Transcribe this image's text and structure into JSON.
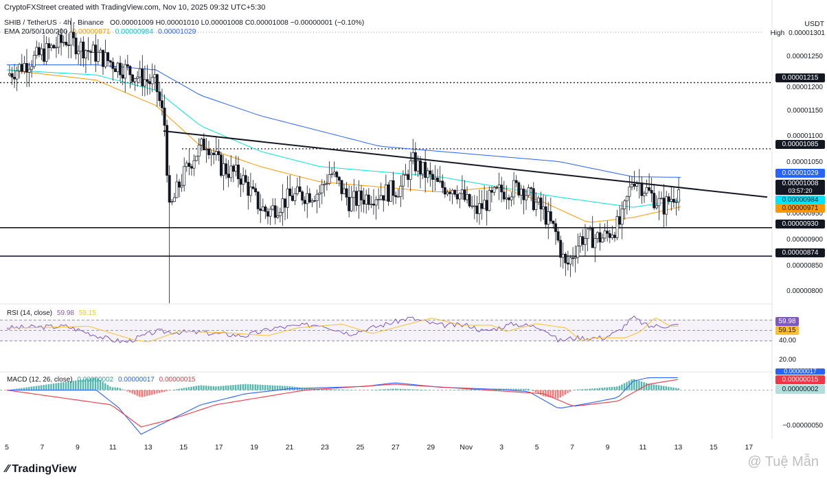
{
  "header": {
    "created": "CryptoFXStreet created with TradingView.com, Nov 10, 2025 09:32 UTC+5:30",
    "symbol": "SHIB / TetherUS · 4h · Binance",
    "ohlc": "O0.00001009 H0.00001010 L0.00001008 C0.00001008 −0.00000001 (−0.10%)",
    "ema_title": "EMA 20/50/100/200",
    "ema_values": [
      "0.00000971",
      "0.00000984",
      "0.00001029"
    ],
    "currency": "USDT"
  },
  "colors": {
    "up": "#089981",
    "down": "#f23645",
    "ema50": "#ff9800",
    "ema100": "#00e5d8",
    "ema200": "#2962ff",
    "rsi": "#7e57c2",
    "rsi_ma": "#fbc02d",
    "macd": "#2962ff",
    "signal": "#f23645"
  },
  "price_levels": [
    {
      "value": "0.00001215",
      "style": "dotted"
    },
    {
      "value": "0.00001085",
      "style": "dotted"
    },
    {
      "value": "0.00000930",
      "style": "solid"
    },
    {
      "value": "0.00000874",
      "style": "solid"
    }
  ],
  "price_labels": [
    {
      "text": "High",
      "value": "0.00001301",
      "bg": "#ffffff",
      "fg": "#131722"
    },
    {
      "text": "",
      "value": "0.00001215",
      "bg": "#131722",
      "fg": "#ffffff"
    },
    {
      "text": "",
      "value": "0.00001085",
      "bg": "#131722",
      "fg": "#ffffff"
    },
    {
      "text": "",
      "value": "0.00001029",
      "bg": "#2962ff",
      "fg": "#ffffff"
    },
    {
      "text": "",
      "value": "0.00001008",
      "bg": "#131722",
      "fg": "#ffffff",
      "sub": "03:57:20"
    },
    {
      "text": "",
      "value": "0.00000984",
      "bg": "#00e5ff",
      "fg": "#131722"
    },
    {
      "text": "",
      "value": "0.00000971",
      "bg": "#ff9800",
      "fg": "#131722"
    },
    {
      "text": "",
      "value": "0.00000930",
      "bg": "#131722",
      "fg": "#ffffff"
    },
    {
      "text": "",
      "value": "0.00000874",
      "bg": "#131722",
      "fg": "#ffffff"
    }
  ],
  "price_scale": [
    "0.00001250",
    "0.00001200",
    "0.00001150",
    "0.00001100",
    "0.00001050",
    "0.00000950",
    "0.00000900",
    "0.00000850",
    "0.00000800"
  ],
  "rsi": {
    "title": "RSI (14, close)",
    "value": "59.98",
    "ma": "59.15",
    "scale": [
      "40.00",
      "20.00"
    ]
  },
  "macd": {
    "title": "MACD (12, 26, close)",
    "values": [
      "0.00000002",
      "0.00000017",
      "0.00000015"
    ],
    "labels": [
      "0.00000017",
      "0.00000015",
      "0.00000002"
    ],
    "scale": [
      "−0.00000050"
    ]
  },
  "x_axis": [
    "5",
    "7",
    "9",
    "11",
    "13",
    "15",
    "17",
    "19",
    "21",
    "23",
    "25",
    "27",
    "29",
    "Nov",
    "3",
    "5",
    "7",
    "9",
    "11",
    "13",
    "15",
    "17"
  ],
  "footer": {
    "logo": "TradingView",
    "watermark": "@ Tuệ Mẫn"
  },
  "chart_data": {
    "type": "candlestick",
    "title": "SHIB / TetherUS · 4h · Binance",
    "x_labels": [
      "5",
      "7",
      "9",
      "11",
      "13",
      "15",
      "17",
      "19",
      "21",
      "23",
      "25",
      "27",
      "29",
      "Nov",
      "3",
      "5",
      "7",
      "9",
      "11",
      "13",
      "15",
      "17"
    ],
    "ylim": [
      7.8e-06,
      1.31e-05
    ],
    "series": [
      {
        "name": "SHIB/USDT",
        "path": [
          [
            0,
            1.23e-05
          ],
          [
            4,
            1.3e-05
          ],
          [
            8,
            1.24e-05
          ],
          [
            10,
            1.21e-05
          ],
          [
            10.6,
            1.13e-05
          ],
          [
            10.9,
            9.6e-06
          ],
          [
            11.5,
            1.01e-05
          ],
          [
            12.5,
            1.07e-05
          ],
          [
            13.4,
            1.1e-05
          ],
          [
            14.3,
            1.05e-05
          ],
          [
            15.7,
            1.03e-05
          ],
          [
            17,
            9.7e-06
          ],
          [
            17.5,
            9.6e-06
          ],
          [
            19,
            9.9e-06
          ],
          [
            21,
            1e-05
          ],
          [
            21.7,
            1.04e-05
          ],
          [
            23,
            9.8e-06
          ],
          [
            24,
            9.9e-06
          ],
          [
            25.5,
            1e-05
          ],
          [
            26.5,
            1.01e-05
          ],
          [
            27.2,
            1.06e-05
          ],
          [
            29,
            1.01e-05
          ],
          [
            30,
            1.01e-05
          ],
          [
            31.4,
            9.6e-06
          ],
          [
            33,
            1e-05
          ],
          [
            34.5,
            1.01e-05
          ],
          [
            36,
            9.6e-06
          ],
          [
            36.8,
            9.2e-06
          ],
          [
            37.5,
            8.5e-06
          ],
          [
            38.5,
            9.1e-06
          ],
          [
            40,
            9.1e-06
          ],
          [
            41.2,
            9.4e-06
          ],
          [
            42,
            1.03e-05
          ],
          [
            43,
            1e-05
          ],
          [
            44,
            9.7e-06
          ],
          [
            45.2,
            1.01e-05
          ]
        ]
      },
      {
        "name": "EMA 50",
        "path": [
          [
            0,
            1.24e-05
          ],
          [
            6,
            1.22e-05
          ],
          [
            10,
            1.17e-05
          ],
          [
            13,
            1.09e-05
          ],
          [
            17,
            1.05e-05
          ],
          [
            21,
            1.02e-05
          ],
          [
            25,
            1.01e-05
          ],
          [
            29,
            1e-05
          ],
          [
            33,
            1.01e-05
          ],
          [
            36,
            9.8e-06
          ],
          [
            39,
            9.4e-06
          ],
          [
            42,
            9.5e-06
          ],
          [
            45.2,
            9.71e-06
          ]
        ]
      },
      {
        "name": "EMA 100",
        "path": [
          [
            0,
            1.24e-05
          ],
          [
            6,
            1.23e-05
          ],
          [
            10,
            1.2e-05
          ],
          [
            13,
            1.13e-05
          ],
          [
            17,
            1.08e-05
          ],
          [
            21,
            1.05e-05
          ],
          [
            25,
            1.04e-05
          ],
          [
            29,
            1.03e-05
          ],
          [
            33,
            1.01e-05
          ],
          [
            37,
            9.9e-06
          ],
          [
            42,
            9.7e-06
          ],
          [
            45.2,
            9.84e-06
          ]
        ]
      },
      {
        "name": "EMA 200",
        "path": [
          [
            0,
            1.25e-05
          ],
          [
            6,
            1.25e-05
          ],
          [
            10,
            1.24e-05
          ],
          [
            13,
            1.19e-05
          ],
          [
            17,
            1.15e-05
          ],
          [
            21,
            1.12e-05
          ],
          [
            25,
            1.09e-05
          ],
          [
            29,
            1.08e-05
          ],
          [
            33,
            1.07e-05
          ],
          [
            37,
            1.06e-05
          ],
          [
            42,
            1.03e-05
          ],
          [
            45.2,
            1.029e-05
          ]
        ]
      }
    ],
    "trendline": [
      [
        10.5,
        1.12e-05
      ],
      [
        51,
        9.9e-06
      ]
    ],
    "levels": [
      1.215e-05,
      1.085e-05,
      9.3e-06,
      8.74e-06
    ],
    "rsi": {
      "ylim": [
        10,
        85
      ],
      "levels": [
        70,
        50,
        30
      ],
      "series": [
        [
          0,
          55
        ],
        [
          4,
          58
        ],
        [
          7,
          32
        ],
        [
          8,
          28
        ],
        [
          10,
          48
        ],
        [
          13,
          46
        ],
        [
          16,
          40
        ],
        [
          18,
          55
        ],
        [
          21,
          62
        ],
        [
          23,
          44
        ],
        [
          27,
          74
        ],
        [
          29,
          60
        ],
        [
          31,
          60
        ],
        [
          32,
          48
        ],
        [
          34,
          63
        ],
        [
          36,
          55
        ],
        [
          37,
          30
        ],
        [
          38,
          36
        ],
        [
          40,
          36
        ],
        [
          41,
          48
        ],
        [
          42,
          75
        ],
        [
          43,
          58
        ],
        [
          45.2,
          59.98
        ]
      ]
    },
    "macd": {
      "ylim": [
        -6.3e-07,
        2.2e-07
      ],
      "macd": [
        [
          0,
          0.0
        ],
        [
          6,
          0.0
        ],
        [
          7.5,
          -2.4e-07
        ],
        [
          9,
          -6e-07
        ],
        [
          10,
          -5e-07
        ],
        [
          13,
          -2e-07
        ],
        [
          16,
          -5e-08
        ],
        [
          19,
          2e-08
        ],
        [
          24,
          5e-08
        ],
        [
          26,
          1e-07
        ],
        [
          29,
          4e-08
        ],
        [
          33,
          1e-08
        ],
        [
          35,
          -2e-08
        ],
        [
          37,
          -2.5e-07
        ],
        [
          39,
          -1.8e-07
        ],
        [
          41,
          -1e-07
        ],
        [
          42,
          1.2e-07
        ],
        [
          43,
          1.7e-07
        ],
        [
          45.2,
          1.7e-07
        ]
      ],
      "signal": [
        [
          0,
          0.0
        ],
        [
          7,
          -2e-07
        ],
        [
          9,
          -5e-07
        ],
        [
          11,
          -4e-07
        ],
        [
          14,
          -2e-07
        ],
        [
          20,
          0.0
        ],
        [
          26,
          8e-08
        ],
        [
          30,
          3e-08
        ],
        [
          36,
          -5e-08
        ],
        [
          38,
          -2.2e-07
        ],
        [
          41,
          -1.5e-07
        ],
        [
          43,
          8e-08
        ],
        [
          45.2,
          1.5e-07
        ]
      ]
    }
  }
}
